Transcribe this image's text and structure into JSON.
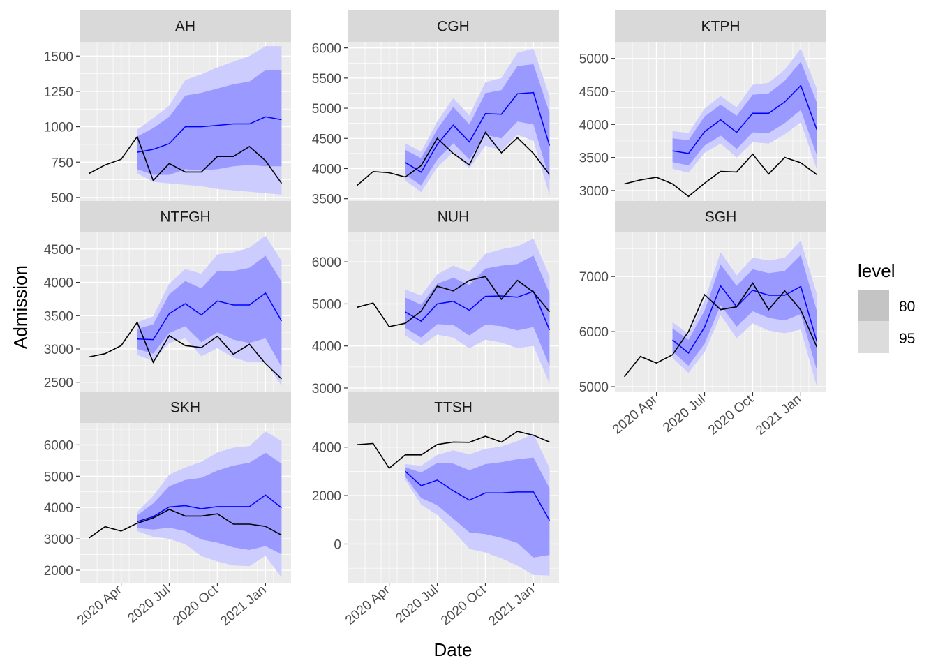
{
  "chart_data": {
    "type": "line",
    "facet_layout": "3x3 grid, free y scales",
    "xlabel": "Date",
    "ylabel": "Admission",
    "x": [
      "2020-02",
      "2020-03",
      "2020-04",
      "2020-05",
      "2020-06",
      "2020-07",
      "2020-08",
      "2020-09",
      "2020-10",
      "2020-11",
      "2020-12",
      "2021-01",
      "2021-02"
    ],
    "x_tick_labels": [
      {
        "date": "2020-04",
        "label": "2020 Apr"
      },
      {
        "date": "2020-07",
        "label": "2020 Jul"
      },
      {
        "date": "2020-10",
        "label": "2020 Oct"
      },
      {
        "date": "2021-01",
        "label": "2021 Jan"
      }
    ],
    "forecast_start": "2020-05",
    "legend": {
      "title": "level",
      "placement": "right",
      "entries": [
        {
          "label": "80",
          "fill": "#c4c4c4"
        },
        {
          "label": "95",
          "fill": "#dcdcdc"
        }
      ]
    },
    "colors": {
      "panel_bg": "#ebebeb",
      "grid": "#ffffff",
      "strip_bg": "#d9d9d9",
      "actual_line": "#000000",
      "forecast_line": "#0000ff",
      "band_80": "#9999ff",
      "band_95": "#ccccff"
    },
    "grid": true,
    "panels": [
      {
        "name": "AH",
        "ylim": [
          470,
          1600
        ],
        "yticks": [
          500,
          750,
          1000,
          1250,
          1500
        ],
        "show_x_labels": false,
        "actual": [
          670,
          730,
          770,
          930,
          620,
          740,
          680,
          680,
          790,
          790,
          860,
          760,
          600
        ],
        "forecast": {
          "mean": [
            820,
            840,
            880,
            1000,
            1000,
            1010,
            1020,
            1020,
            1070,
            1050
          ],
          "lo80": [
            700,
            660,
            660,
            700,
            690,
            700,
            720,
            730,
            720,
            720
          ],
          "hi80": [
            930,
            990,
            1070,
            1220,
            1240,
            1270,
            1300,
            1320,
            1400,
            1400
          ],
          "lo95": [
            670,
            610,
            600,
            590,
            580,
            560,
            550,
            540,
            530,
            520
          ],
          "hi95": [
            980,
            1060,
            1150,
            1330,
            1370,
            1420,
            1460,
            1500,
            1570,
            1570
          ]
        }
      },
      {
        "name": "CGH",
        "ylim": [
          3450,
          6100
        ],
        "yticks": [
          3500,
          4000,
          4500,
          5000,
          5500,
          6000
        ],
        "show_x_labels": false,
        "actual": [
          3720,
          3950,
          3930,
          3860,
          4050,
          4500,
          4250,
          4060,
          4600,
          4260,
          4510,
          4250,
          3900
        ],
        "forecast": {
          "mean": [
            4100,
            3940,
            4400,
            4720,
            4440,
            4910,
            4900,
            5240,
            5260,
            4380
          ],
          "lo80": [
            3900,
            3720,
            4150,
            4420,
            4150,
            4560,
            4500,
            4780,
            4730,
            3820
          ],
          "hi80": [
            4310,
            4170,
            4650,
            5020,
            4730,
            5250,
            5300,
            5700,
            5730,
            4920
          ],
          "lo95": [
            3800,
            3610,
            4020,
            4270,
            4000,
            4380,
            4300,
            4560,
            4460,
            3550
          ],
          "hi95": [
            4420,
            4280,
            4780,
            5170,
            4880,
            5430,
            5500,
            5920,
            5990,
            5190
          ]
        }
      },
      {
        "name": "KTPH",
        "ylim": [
          2830,
          5250
        ],
        "yticks": [
          3000,
          3500,
          4000,
          4500,
          5000
        ],
        "show_x_labels": false,
        "actual": [
          3100,
          3160,
          3200,
          3100,
          2910,
          3110,
          3290,
          3280,
          3550,
          3250,
          3500,
          3420,
          3240
        ],
        "forecast": {
          "mean": [
            3600,
            3560,
            3890,
            4070,
            3880,
            4170,
            4170,
            4340,
            4590,
            3920
          ],
          "lo80": [
            3430,
            3380,
            3680,
            3830,
            3630,
            3880,
            3870,
            4020,
            4220,
            3530
          ],
          "hi80": [
            3790,
            3760,
            4120,
            4300,
            4130,
            4450,
            4470,
            4660,
            4950,
            4330
          ],
          "lo95": [
            3330,
            3270,
            3570,
            3710,
            3500,
            3730,
            3710,
            3850,
            4030,
            3320
          ],
          "hi95": [
            3900,
            3870,
            4240,
            4430,
            4260,
            4600,
            4630,
            4830,
            5150,
            4540
          ]
        }
      },
      {
        "name": "NTFGH",
        "ylim": [
          2350,
          4750
        ],
        "yticks": [
          2500,
          3000,
          3500,
          4000,
          4500
        ],
        "show_x_labels": false,
        "actual": [
          2880,
          2930,
          3050,
          3400,
          2800,
          3200,
          3050,
          3020,
          3190,
          2920,
          3070,
          2780,
          2550
        ],
        "forecast": {
          "mean": [
            3150,
            3140,
            3530,
            3680,
            3510,
            3720,
            3660,
            3660,
            3840,
            3420
          ],
          "lo80": [
            3000,
            2930,
            3240,
            3340,
            3100,
            3250,
            3140,
            3090,
            3160,
            2730
          ],
          "hi80": [
            3300,
            3370,
            3820,
            4020,
            3910,
            4170,
            4170,
            4220,
            4400,
            4010
          ],
          "lo95": [
            2910,
            2820,
            3090,
            3160,
            2890,
            3010,
            2870,
            2800,
            2800,
            2450
          ],
          "hi95": [
            3400,
            3490,
            3980,
            4200,
            4130,
            4420,
            4450,
            4520,
            4700,
            4320
          ]
        }
      },
      {
        "name": "NUH",
        "ylim": [
          2900,
          6700
        ],
        "yticks": [
          3000,
          4000,
          5000,
          6000
        ],
        "show_x_labels": false,
        "actual": [
          4920,
          5020,
          4460,
          4540,
          4830,
          5420,
          5310,
          5560,
          5650,
          5110,
          5560,
          5280,
          4810
        ],
        "forecast": {
          "mean": [
            4810,
            4590,
            5000,
            5060,
            4850,
            5180,
            5190,
            5160,
            5300,
            4380
          ],
          "lo80": [
            4430,
            4200,
            4520,
            4500,
            4250,
            4510,
            4470,
            4370,
            4450,
            3520
          ],
          "hi80": [
            5150,
            4980,
            5480,
            5620,
            5450,
            5840,
            5910,
            5950,
            6150,
            5250
          ],
          "lo95": [
            4250,
            4010,
            4270,
            4200,
            3940,
            4150,
            4080,
            3950,
            4000,
            3100
          ],
          "hi95": [
            5340,
            5200,
            5700,
            5910,
            5760,
            6190,
            6300,
            6370,
            6550,
            5660
          ]
        }
      },
      {
        "name": "SGH",
        "ylim": [
          4900,
          7800
        ],
        "yticks": [
          5000,
          6000,
          7000
        ],
        "show_x_labels": true,
        "actual": [
          5180,
          5550,
          5430,
          5580,
          6000,
          6670,
          6400,
          6450,
          6880,
          6400,
          6740,
          6390,
          5720
        ],
        "forecast": {
          "mean": [
            5850,
            5610,
            6080,
            6830,
            6450,
            6750,
            6660,
            6660,
            6820,
            5820
          ],
          "lo80": [
            5640,
            5380,
            5780,
            6480,
            6090,
            6370,
            6250,
            6200,
            6320,
            5300
          ],
          "hi80": [
            6060,
            5850,
            6380,
            7220,
            6830,
            7130,
            7060,
            7100,
            7390,
            6370
          ],
          "lo95": [
            5520,
            5250,
            5630,
            6300,
            5880,
            6150,
            6020,
            5970,
            6040,
            5000
          ],
          "hi95": [
            6170,
            5960,
            6560,
            7440,
            7020,
            7340,
            7290,
            7340,
            7650,
            6680
          ]
        }
      },
      {
        "name": "SKH",
        "ylim": [
          1600,
          6700
        ],
        "yticks": [
          2000,
          3000,
          4000,
          5000,
          6000
        ],
        "show_x_labels": true,
        "actual": [
          3030,
          3390,
          3250,
          3500,
          3670,
          3940,
          3730,
          3730,
          3800,
          3470,
          3470,
          3400,
          3120
        ],
        "forecast": {
          "mean": [
            3550,
            3710,
            4020,
            4060,
            3960,
            4030,
            4030,
            4030,
            4400,
            3990
          ],
          "lo80": [
            3350,
            3300,
            3360,
            3250,
            2980,
            2880,
            2730,
            2650,
            2770,
            2510
          ],
          "hi80": [
            3750,
            4130,
            4680,
            4880,
            4950,
            5180,
            5340,
            5430,
            5750,
            5400
          ],
          "lo95": [
            3250,
            3070,
            3000,
            2830,
            2450,
            2280,
            2150,
            2130,
            2460,
            1770
          ],
          "hi95": [
            3860,
            4370,
            5050,
            5280,
            5460,
            5760,
            5910,
            5960,
            6430,
            6120
          ]
        }
      },
      {
        "name": "TTSH",
        "ylim": [
          -1600,
          5000
        ],
        "yticks": [
          0,
          2000,
          4000
        ],
        "show_x_labels": true,
        "actual": [
          4100,
          4150,
          3130,
          3680,
          3680,
          4110,
          4210,
          4200,
          4450,
          4210,
          4650,
          4490,
          4210
        ],
        "forecast": {
          "mean": [
            3000,
            2410,
            2640,
            2200,
            1810,
            2110,
            2110,
            2150,
            2150,
            970
          ],
          "lo80": [
            2780,
            1900,
            1600,
            1050,
            480,
            410,
            260,
            40,
            -560,
            -450
          ],
          "hi80": [
            3170,
            2950,
            3350,
            3320,
            3050,
            3300,
            3380,
            3500,
            3570,
            2300
          ],
          "lo95": [
            2660,
            1620,
            1200,
            540,
            -200,
            -350,
            -590,
            -890,
            -1280,
            -1300
          ],
          "hi95": [
            3300,
            3230,
            3680,
            3870,
            3700,
            3930,
            4030,
            4250,
            4550,
            3140
          ]
        }
      }
    ]
  }
}
